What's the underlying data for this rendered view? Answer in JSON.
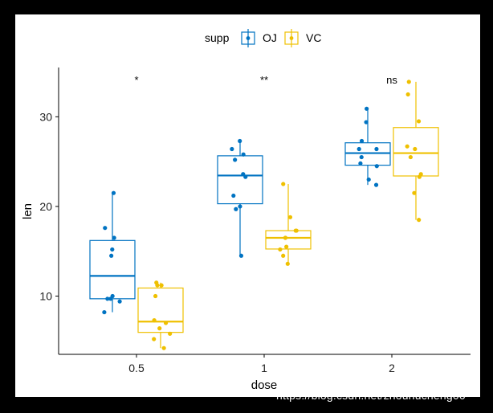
{
  "chart_data": {
    "type": "box",
    "title": "",
    "xlabel": "dose",
    "ylabel": "len",
    "categories": [
      "0.5",
      "1",
      "2"
    ],
    "y_ticks": [
      10,
      20,
      30
    ],
    "ylim": [
      3.5,
      35.5
    ],
    "grid": false,
    "legend": {
      "title": "supp",
      "position": "top",
      "entries": [
        "OJ",
        "VC"
      ]
    },
    "series": [
      {
        "name": "OJ",
        "color": "#0073C2",
        "boxes": [
          {
            "min": 8.2,
            "q1": 9.7,
            "median": 12.25,
            "q3": 16.2,
            "max": 21.5
          },
          {
            "min": 14.5,
            "q1": 20.3,
            "median": 23.45,
            "q3": 25.65,
            "max": 27.3
          },
          {
            "min": 22.4,
            "q1": 24.6,
            "median": 25.95,
            "q3": 27.1,
            "max": 30.9
          }
        ],
        "points": [
          [
            15.2,
            21.5,
            17.6,
            9.7,
            14.5,
            10.0,
            8.2,
            9.4,
            16.5,
            9.7
          ],
          [
            19.7,
            23.3,
            23.6,
            26.4,
            20.0,
            25.2,
            25.8,
            21.2,
            14.5,
            27.3
          ],
          [
            25.5,
            26.4,
            22.4,
            24.5,
            24.8,
            30.9,
            26.4,
            27.3,
            29.4,
            23.0
          ]
        ]
      },
      {
        "name": "VC",
        "color": "#EFC000",
        "boxes": [
          {
            "min": 4.2,
            "q1": 5.95,
            "median": 7.15,
            "q3": 10.9,
            "max": 11.5
          },
          {
            "min": 13.6,
            "q1": 15.25,
            "median": 16.5,
            "q3": 17.3,
            "max": 22.5
          },
          {
            "min": 18.5,
            "q1": 23.4,
            "median": 25.95,
            "q3": 28.8,
            "max": 33.9
          }
        ],
        "points": [
          [
            4.2,
            11.5,
            7.3,
            5.8,
            6.4,
            10.0,
            11.2,
            11.2,
            5.2,
            7.0
          ],
          [
            16.5,
            16.5,
            15.2,
            17.3,
            22.5,
            17.3,
            13.6,
            14.5,
            18.8,
            15.5
          ],
          [
            23.6,
            18.5,
            33.9,
            25.5,
            26.4,
            32.5,
            26.7,
            21.5,
            23.3,
            29.5
          ]
        ]
      }
    ],
    "annotations": [
      "*",
      "**",
      "ns"
    ]
  },
  "watermark": "https://blog.csdn.net/zhouhucheng00"
}
